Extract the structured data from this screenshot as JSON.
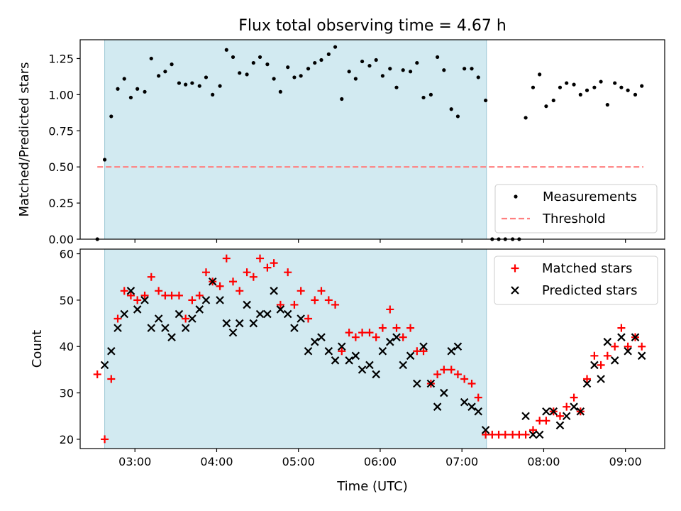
{
  "chart_data": [
    {
      "type": "scatter",
      "title": "Flux total observing time = 4.67 h",
      "xlabel": "",
      "ylabel": "Matched/Predicted stars",
      "xlim": [
        2.33,
        9.48
      ],
      "ylim": [
        0,
        1.38
      ],
      "xticks": [
        3,
        4,
        5,
        6,
        7,
        8,
        9
      ],
      "xtick_labels": [
        "03:00",
        "04:00",
        "05:00",
        "06:00",
        "07:00",
        "08:00",
        "09:00"
      ],
      "yticks": [
        0,
        0.25,
        0.5,
        0.75,
        1.0,
        1.25
      ],
      "ytick_labels": [
        "0.00",
        "0.25",
        "0.50",
        "0.75",
        "1.00",
        "1.25"
      ],
      "shaded_region": {
        "x_start": 2.63,
        "x_end": 7.3,
        "color": "#add8e6"
      },
      "threshold": {
        "name": "Threshold",
        "value": 0.5,
        "x_start": 2.54,
        "x_end": 9.22,
        "color": "#ff7f7f"
      },
      "legend_position": "lower-right",
      "series": [
        {
          "name": "Measurements",
          "color": "#000000",
          "marker": "dot",
          "points": [
            [
              2.54,
              0.0
            ],
            [
              2.63,
              0.55
            ],
            [
              2.71,
              0.85
            ],
            [
              2.79,
              1.04
            ],
            [
              2.87,
              1.11
            ],
            [
              2.95,
              0.98
            ],
            [
              3.03,
              1.04
            ],
            [
              3.12,
              1.02
            ],
            [
              3.2,
              1.25
            ],
            [
              3.29,
              1.13
            ],
            [
              3.37,
              1.16
            ],
            [
              3.45,
              1.21
            ],
            [
              3.54,
              1.08
            ],
            [
              3.62,
              1.07
            ],
            [
              3.7,
              1.08
            ],
            [
              3.79,
              1.06
            ],
            [
              3.87,
              1.12
            ],
            [
              3.95,
              1.0
            ],
            [
              4.04,
              1.06
            ],
            [
              4.12,
              1.31
            ],
            [
              4.2,
              1.26
            ],
            [
              4.28,
              1.15
            ],
            [
              4.37,
              1.14
            ],
            [
              4.45,
              1.22
            ],
            [
              4.53,
              1.26
            ],
            [
              4.62,
              1.21
            ],
            [
              4.7,
              1.11
            ],
            [
              4.78,
              1.02
            ],
            [
              4.87,
              1.19
            ],
            [
              4.95,
              1.12
            ],
            [
              5.03,
              1.13
            ],
            [
              5.12,
              1.18
            ],
            [
              5.2,
              1.22
            ],
            [
              5.28,
              1.24
            ],
            [
              5.37,
              1.28
            ],
            [
              5.45,
              1.33
            ],
            [
              5.53,
              0.97
            ],
            [
              5.62,
              1.16
            ],
            [
              5.7,
              1.11
            ],
            [
              5.78,
              1.23
            ],
            [
              5.87,
              1.2
            ],
            [
              5.95,
              1.24
            ],
            [
              6.03,
              1.13
            ],
            [
              6.12,
              1.18
            ],
            [
              6.2,
              1.05
            ],
            [
              6.28,
              1.17
            ],
            [
              6.37,
              1.16
            ],
            [
              6.45,
              1.22
            ],
            [
              6.53,
              0.98
            ],
            [
              6.62,
              1.0
            ],
            [
              6.7,
              1.26
            ],
            [
              6.78,
              1.17
            ],
            [
              6.87,
              0.9
            ],
            [
              6.95,
              0.85
            ],
            [
              7.03,
              1.18
            ],
            [
              7.12,
              1.18
            ],
            [
              7.2,
              1.12
            ],
            [
              7.29,
              0.96
            ],
            [
              7.37,
              0.0
            ],
            [
              7.45,
              0.0
            ],
            [
              7.53,
              0.0
            ],
            [
              7.62,
              0.0
            ],
            [
              7.7,
              0.0
            ],
            [
              7.78,
              0.84
            ],
            [
              7.87,
              1.05
            ],
            [
              7.95,
              1.14
            ],
            [
              8.03,
              0.92
            ],
            [
              8.12,
              0.96
            ],
            [
              8.2,
              1.05
            ],
            [
              8.28,
              1.08
            ],
            [
              8.37,
              1.07
            ],
            [
              8.45,
              1.0
            ],
            [
              8.53,
              1.03
            ],
            [
              8.62,
              1.05
            ],
            [
              8.7,
              1.09
            ],
            [
              8.78,
              0.93
            ],
            [
              8.87,
              1.08
            ],
            [
              8.95,
              1.05
            ],
            [
              9.03,
              1.03
            ],
            [
              9.12,
              1.0
            ],
            [
              9.2,
              1.06
            ]
          ]
        }
      ]
    },
    {
      "type": "scatter",
      "title": "",
      "xlabel": "Time (UTC)",
      "ylabel": "Count",
      "xlim": [
        2.33,
        9.48
      ],
      "ylim": [
        18,
        61
      ],
      "xticks": [
        3,
        4,
        5,
        6,
        7,
        8,
        9
      ],
      "xtick_labels": [
        "03:00",
        "04:00",
        "05:00",
        "06:00",
        "07:00",
        "08:00",
        "09:00"
      ],
      "yticks": [
        20,
        30,
        40,
        50,
        60
      ],
      "ytick_labels": [
        "20",
        "30",
        "40",
        "50",
        "60"
      ],
      "shaded_region": {
        "x_start": 2.63,
        "x_end": 7.3,
        "color": "#add8e6"
      },
      "legend_position": "upper-right",
      "series": [
        {
          "name": "Matched stars",
          "color": "#ff0000",
          "marker": "plus",
          "points": [
            [
              2.54,
              34
            ],
            [
              2.63,
              20
            ],
            [
              2.71,
              33
            ],
            [
              2.79,
              46
            ],
            [
              2.87,
              52
            ],
            [
              2.95,
              51
            ],
            [
              3.03,
              50
            ],
            [
              3.12,
              51
            ],
            [
              3.2,
              55
            ],
            [
              3.29,
              52
            ],
            [
              3.37,
              51
            ],
            [
              3.45,
              51
            ],
            [
              3.54,
              51
            ],
            [
              3.62,
              46
            ],
            [
              3.7,
              50
            ],
            [
              3.79,
              51
            ],
            [
              3.87,
              56
            ],
            [
              3.95,
              54
            ],
            [
              4.04,
              53
            ],
            [
              4.12,
              59
            ],
            [
              4.2,
              54
            ],
            [
              4.28,
              52
            ],
            [
              4.37,
              56
            ],
            [
              4.45,
              55
            ],
            [
              4.53,
              59
            ],
            [
              4.62,
              57
            ],
            [
              4.7,
              58
            ],
            [
              4.78,
              49
            ],
            [
              4.87,
              56
            ],
            [
              4.95,
              49
            ],
            [
              5.03,
              52
            ],
            [
              5.12,
              46
            ],
            [
              5.2,
              50
            ],
            [
              5.28,
              52
            ],
            [
              5.37,
              50
            ],
            [
              5.45,
              49
            ],
            [
              5.53,
              39
            ],
            [
              5.62,
              43
            ],
            [
              5.7,
              42
            ],
            [
              5.78,
              43
            ],
            [
              5.87,
              43
            ],
            [
              5.95,
              42
            ],
            [
              6.03,
              44
            ],
            [
              6.12,
              48
            ],
            [
              6.2,
              44
            ],
            [
              6.28,
              42
            ],
            [
              6.37,
              44
            ],
            [
              6.45,
              39
            ],
            [
              6.53,
              39
            ],
            [
              6.62,
              32
            ],
            [
              6.7,
              34
            ],
            [
              6.78,
              35
            ],
            [
              6.87,
              35
            ],
            [
              6.95,
              34
            ],
            [
              7.03,
              33
            ],
            [
              7.12,
              32
            ],
            [
              7.2,
              29
            ],
            [
              7.29,
              21
            ],
            [
              7.37,
              21
            ],
            [
              7.45,
              21
            ],
            [
              7.53,
              21
            ],
            [
              7.62,
              21
            ],
            [
              7.7,
              21
            ],
            [
              7.78,
              21
            ],
            [
              7.87,
              22
            ],
            [
              7.95,
              24
            ],
            [
              8.03,
              24
            ],
            [
              8.12,
              26
            ],
            [
              8.2,
              25
            ],
            [
              8.28,
              27
            ],
            [
              8.37,
              29
            ],
            [
              8.45,
              26
            ],
            [
              8.53,
              33
            ],
            [
              8.62,
              38
            ],
            [
              8.7,
              36
            ],
            [
              8.78,
              38
            ],
            [
              8.87,
              40
            ],
            [
              8.95,
              44
            ],
            [
              9.03,
              40
            ],
            [
              9.12,
              42
            ],
            [
              9.2,
              40
            ]
          ]
        },
        {
          "name": "Predicted stars",
          "color": "#000000",
          "marker": "x",
          "points": [
            [
              2.63,
              36
            ],
            [
              2.71,
              39
            ],
            [
              2.79,
              44
            ],
            [
              2.87,
              47
            ],
            [
              2.95,
              52
            ],
            [
              3.03,
              48
            ],
            [
              3.12,
              50
            ],
            [
              3.2,
              44
            ],
            [
              3.29,
              46
            ],
            [
              3.37,
              44
            ],
            [
              3.45,
              42
            ],
            [
              3.54,
              47
            ],
            [
              3.62,
              44
            ],
            [
              3.7,
              46
            ],
            [
              3.79,
              48
            ],
            [
              3.87,
              50
            ],
            [
              3.95,
              54
            ],
            [
              4.04,
              50
            ],
            [
              4.12,
              45
            ],
            [
              4.2,
              43
            ],
            [
              4.28,
              45
            ],
            [
              4.37,
              49
            ],
            [
              4.45,
              45
            ],
            [
              4.53,
              47
            ],
            [
              4.62,
              47
            ],
            [
              4.7,
              52
            ],
            [
              4.78,
              48
            ],
            [
              4.87,
              47
            ],
            [
              4.95,
              44
            ],
            [
              5.03,
              46
            ],
            [
              5.12,
              39
            ],
            [
              5.2,
              41
            ],
            [
              5.28,
              42
            ],
            [
              5.37,
              39
            ],
            [
              5.45,
              37
            ],
            [
              5.53,
              40
            ],
            [
              5.62,
              37
            ],
            [
              5.7,
              38
            ],
            [
              5.78,
              35
            ],
            [
              5.87,
              36
            ],
            [
              5.95,
              34
            ],
            [
              6.03,
              39
            ],
            [
              6.12,
              41
            ],
            [
              6.2,
              42
            ],
            [
              6.28,
              36
            ],
            [
              6.37,
              38
            ],
            [
              6.45,
              32
            ],
            [
              6.53,
              40
            ],
            [
              6.62,
              32
            ],
            [
              6.7,
              27
            ],
            [
              6.78,
              30
            ],
            [
              6.87,
              39
            ],
            [
              6.95,
              40
            ],
            [
              7.03,
              28
            ],
            [
              7.12,
              27
            ],
            [
              7.2,
              26
            ],
            [
              7.29,
              22
            ],
            [
              7.78,
              25
            ],
            [
              7.87,
              21
            ],
            [
              7.95,
              21
            ],
            [
              8.03,
              26
            ],
            [
              8.12,
              26
            ],
            [
              8.2,
              23
            ],
            [
              8.28,
              25
            ],
            [
              8.37,
              27
            ],
            [
              8.45,
              26
            ],
            [
              8.53,
              32
            ],
            [
              8.62,
              36
            ],
            [
              8.7,
              33
            ],
            [
              8.78,
              41
            ],
            [
              8.87,
              37
            ],
            [
              8.95,
              42
            ],
            [
              9.03,
              39
            ],
            [
              9.12,
              42
            ],
            [
              9.2,
              38
            ]
          ]
        }
      ]
    }
  ]
}
